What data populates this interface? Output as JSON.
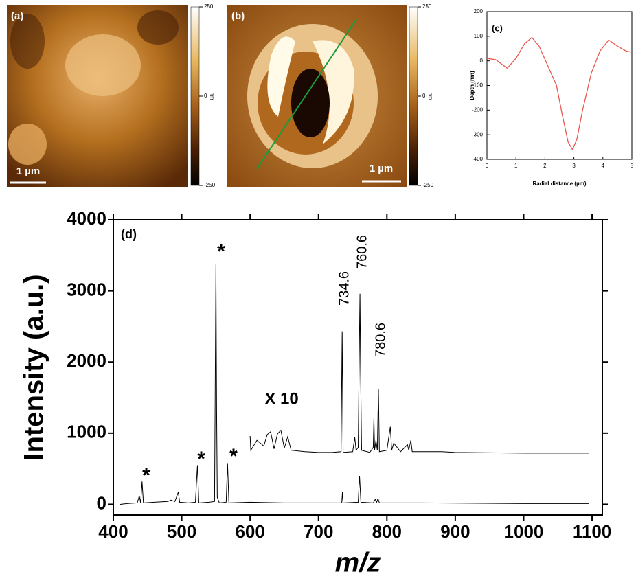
{
  "images": [
    {
      "label": "(a)",
      "scale_bar": "1 µm",
      "colorbar": {
        "clim": [
          -250,
          250
        ],
        "ticks": [
          250,
          0,
          -250
        ],
        "unit": "nm"
      }
    },
    {
      "label": "(b)",
      "scale_bar": "1 µm",
      "colorbar": {
        "clim": [
          -250,
          250
        ],
        "ticks": [
          250,
          0,
          -250
        ],
        "unit": "nm"
      }
    }
  ],
  "chart_data": [
    {
      "type": "line",
      "label": "(c)",
      "x_label": "Radial distance (µm)",
      "y_label": "Depth (nm)",
      "xlim": [
        0,
        5
      ],
      "xticks": [
        0,
        1,
        2,
        3,
        4,
        5
      ],
      "ylim": [
        -400,
        200
      ],
      "yticks": [
        -400,
        -300,
        -200,
        -100,
        0,
        100,
        200
      ],
      "series": [
        {
          "color": "#e8574e",
          "x": [
            0,
            0.3,
            0.7,
            1.0,
            1.3,
            1.55,
            1.8,
            2.1,
            2.4,
            2.6,
            2.8,
            2.95,
            3.1,
            3.3,
            3.6,
            3.9,
            4.2,
            4.5,
            4.8,
            5.0
          ],
          "values": [
            10,
            5,
            -30,
            10,
            70,
            95,
            60,
            -20,
            -100,
            -220,
            -330,
            -360,
            -320,
            -200,
            -50,
            40,
            85,
            60,
            40,
            35
          ]
        }
      ]
    },
    {
      "type": "line",
      "label": "(d)",
      "x_label": "m/z",
      "y_label": "Intensity (a.u.)",
      "xlim": [
        400,
        1115
      ],
      "xticks": [
        400,
        500,
        600,
        700,
        800,
        900,
        1000,
        1100
      ],
      "ylim": [
        -150,
        4000
      ],
      "yticks": [
        0,
        1000,
        2000,
        3000,
        4000
      ],
      "series": [
        {
          "color": "#000000",
          "x": [
            410,
            420,
            435,
            438,
            440,
            442,
            444,
            460,
            480,
            484,
            490,
            495,
            497,
            510,
            520,
            523,
            525,
            540,
            548,
            550,
            551,
            552,
            555,
            565,
            567,
            569,
            600,
            650,
            700,
            734,
            735,
            736,
            758,
            760,
            762,
            780,
            783,
            785,
            787,
            789,
            850,
            1000,
            1095
          ],
          "values": [
            0,
            10,
            20,
            120,
            20,
            320,
            20,
            30,
            40,
            60,
            40,
            170,
            30,
            20,
            30,
            550,
            20,
            30,
            40,
            3380,
            1370,
            100,
            20,
            30,
            580,
            20,
            30,
            20,
            20,
            20,
            170,
            20,
            30,
            400,
            30,
            20,
            70,
            30,
            80,
            20,
            20,
            10,
            10
          ]
        },
        {
          "color": "#000000",
          "x": [
            600,
            601,
            610,
            620,
            625,
            630,
            635,
            640,
            645,
            650,
            655,
            660,
            680,
            700,
            720,
            733,
            734.6,
            736,
            750,
            753,
            755,
            758,
            760.6,
            761.5,
            763,
            775,
            780,
            781,
            782,
            784,
            786,
            787.6,
            789,
            800,
            805,
            807,
            810,
            820,
            830,
            832,
            835,
            837,
            880,
            900,
            1000,
            1095
          ],
          "values": [
            960,
            760,
            900,
            820,
            980,
            1020,
            780,
            990,
            1040,
            790,
            950,
            760,
            740,
            730,
            730,
            740,
            2430,
            730,
            740,
            940,
            760,
            800,
            2960,
            1920,
            760,
            730,
            800,
            1210,
            760,
            900,
            760,
            1620,
            740,
            760,
            1090,
            760,
            860,
            740,
            840,
            760,
            900,
            740,
            740,
            730,
            720,
            720
          ]
        }
      ],
      "annotations": [
        "734.6",
        "760.6",
        "780.6",
        "X 10"
      ],
      "markers": [
        "*",
        "*",
        "*",
        "*"
      ]
    }
  ]
}
